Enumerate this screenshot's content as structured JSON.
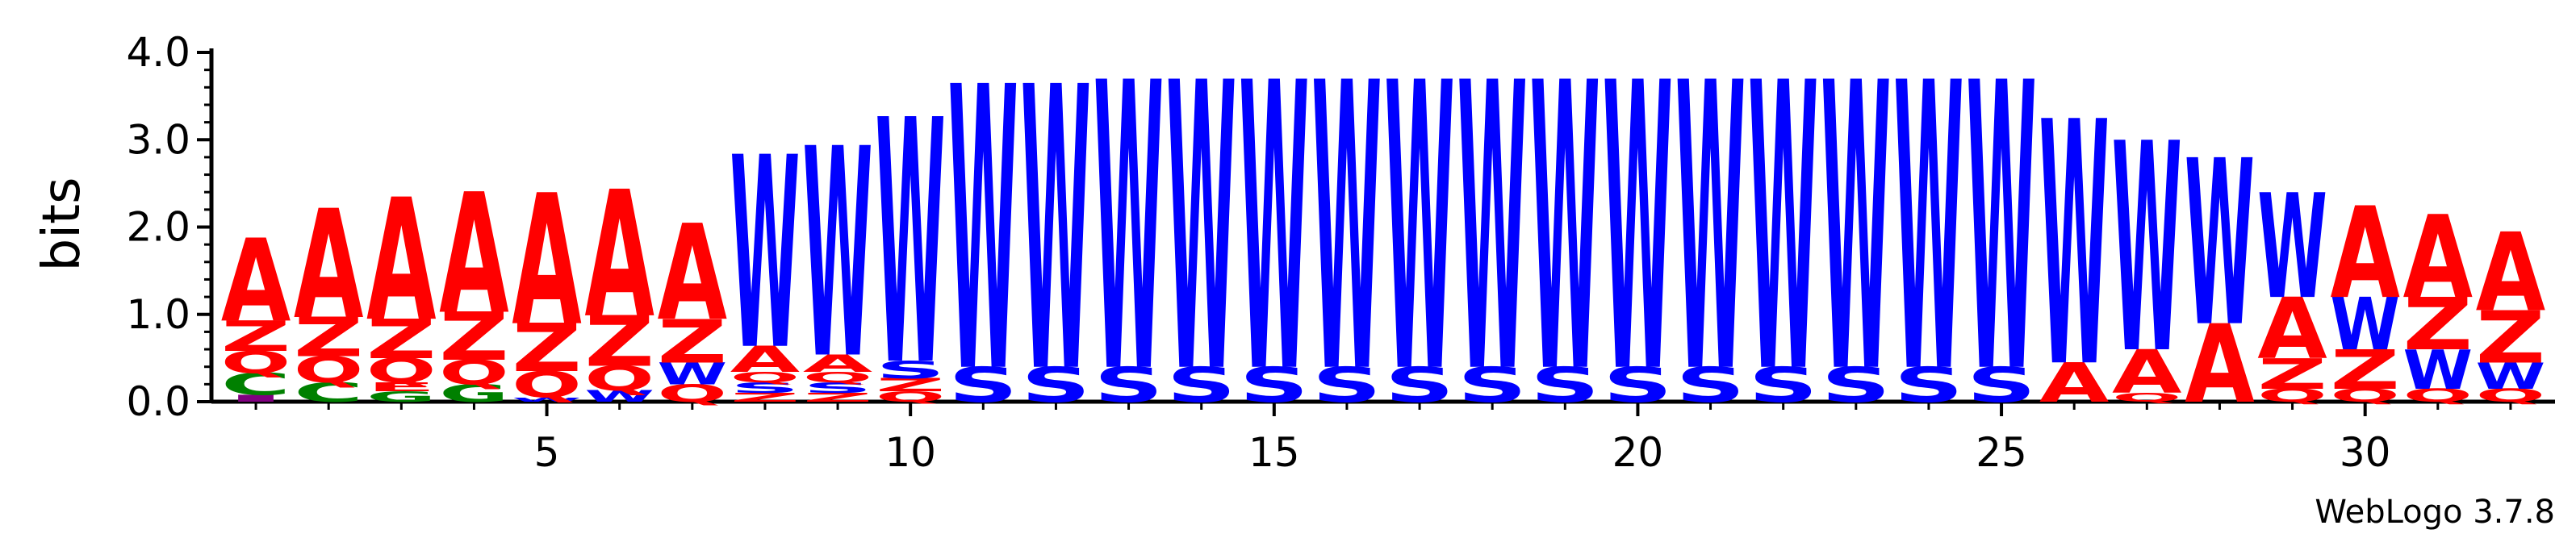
{
  "chart_data": {
    "type": "sequence_logo",
    "ylabel": "bits",
    "ylim": [
      0,
      4.0
    ],
    "y_ticks": [
      "0.0",
      "1.0",
      "2.0",
      "3.0",
      "4.0"
    ],
    "x_ticks": [
      "5",
      "10",
      "15",
      "20",
      "25",
      "30"
    ],
    "x_tick_positions": [
      5,
      10,
      15,
      20,
      25,
      30
    ],
    "positions": [
      {
        "pos": 1,
        "letters": [
          {
            "c": "I",
            "h": 0.08
          },
          {
            "c": "C",
            "h": 0.25
          },
          {
            "c": "Q",
            "h": 0.25
          },
          {
            "c": "Z",
            "h": 0.35
          },
          {
            "c": "A",
            "h": 0.95
          }
        ]
      },
      {
        "pos": 2,
        "letters": [
          {
            "c": "C",
            "h": 0.22
          },
          {
            "c": "Q",
            "h": 0.3
          },
          {
            "c": "Z",
            "h": 0.45
          },
          {
            "c": "A",
            "h": 1.25
          }
        ]
      },
      {
        "pos": 3,
        "letters": [
          {
            "c": "G",
            "h": 0.12
          },
          {
            "c": "E",
            "h": 0.1
          },
          {
            "c": "Q",
            "h": 0.28
          },
          {
            "c": "Z",
            "h": 0.45
          },
          {
            "c": "A",
            "h": 1.4
          }
        ]
      },
      {
        "pos": 4,
        "letters": [
          {
            "c": "G",
            "h": 0.2
          },
          {
            "c": "Q",
            "h": 0.28
          },
          {
            "c": "Z",
            "h": 0.55
          },
          {
            "c": "A",
            "h": 1.38
          }
        ]
      },
      {
        "pos": 5,
        "letters": [
          {
            "c": "W",
            "h": 0.05
          },
          {
            "c": "Q",
            "h": 0.3
          },
          {
            "c": "Z",
            "h": 0.55
          },
          {
            "c": "A",
            "h": 1.5
          }
        ]
      },
      {
        "pos": 6,
        "letters": [
          {
            "c": "W",
            "h": 0.13
          },
          {
            "c": "Q",
            "h": 0.28
          },
          {
            "c": "Z",
            "h": 0.58
          },
          {
            "c": "A",
            "h": 1.45
          }
        ]
      },
      {
        "pos": 7,
        "letters": [
          {
            "c": "Q",
            "h": 0.2
          },
          {
            "c": "W",
            "h": 0.25
          },
          {
            "c": "Z",
            "h": 0.5
          },
          {
            "c": "A",
            "h": 1.1
          }
        ]
      },
      {
        "pos": 8,
        "letters": [
          {
            "c": "Z",
            "h": 0.1
          },
          {
            "c": "S",
            "h": 0.12
          },
          {
            "c": "Q",
            "h": 0.12
          },
          {
            "c": "A",
            "h": 0.3
          },
          {
            "c": "W",
            "h": 2.2
          }
        ]
      },
      {
        "pos": 9,
        "letters": [
          {
            "c": "Z",
            "h": 0.1
          },
          {
            "c": "S",
            "h": 0.12
          },
          {
            "c": "Q",
            "h": 0.12
          },
          {
            "c": "A",
            "h": 0.2
          },
          {
            "c": "W",
            "h": 2.4
          }
        ]
      },
      {
        "pos": 10,
        "letters": [
          {
            "c": "Q",
            "h": 0.12
          },
          {
            "c": "Z",
            "h": 0.15
          },
          {
            "c": "S",
            "h": 0.2
          },
          {
            "c": "W",
            "h": 2.8
          }
        ]
      },
      {
        "pos": 11,
        "letters": [
          {
            "c": "S",
            "h": 0.4
          },
          {
            "c": "W",
            "h": 3.25
          }
        ]
      },
      {
        "pos": 12,
        "letters": [
          {
            "c": "S",
            "h": 0.4
          },
          {
            "c": "W",
            "h": 3.25
          }
        ]
      },
      {
        "pos": 13,
        "letters": [
          {
            "c": "S",
            "h": 0.4
          },
          {
            "c": "W",
            "h": 3.3
          }
        ]
      },
      {
        "pos": 14,
        "letters": [
          {
            "c": "S",
            "h": 0.4
          },
          {
            "c": "W",
            "h": 3.3
          }
        ]
      },
      {
        "pos": 15,
        "letters": [
          {
            "c": "S",
            "h": 0.4
          },
          {
            "c": "W",
            "h": 3.3
          }
        ]
      },
      {
        "pos": 16,
        "letters": [
          {
            "c": "S",
            "h": 0.4
          },
          {
            "c": "W",
            "h": 3.3
          }
        ]
      },
      {
        "pos": 17,
        "letters": [
          {
            "c": "S",
            "h": 0.4
          },
          {
            "c": "W",
            "h": 3.3
          }
        ]
      },
      {
        "pos": 18,
        "letters": [
          {
            "c": "S",
            "h": 0.4
          },
          {
            "c": "W",
            "h": 3.3
          }
        ]
      },
      {
        "pos": 19,
        "letters": [
          {
            "c": "S",
            "h": 0.4
          },
          {
            "c": "W",
            "h": 3.3
          }
        ]
      },
      {
        "pos": 20,
        "letters": [
          {
            "c": "S",
            "h": 0.4
          },
          {
            "c": "W",
            "h": 3.3
          }
        ]
      },
      {
        "pos": 21,
        "letters": [
          {
            "c": "S",
            "h": 0.4
          },
          {
            "c": "W",
            "h": 3.3
          }
        ]
      },
      {
        "pos": 22,
        "letters": [
          {
            "c": "S",
            "h": 0.4
          },
          {
            "c": "W",
            "h": 3.3
          }
        ]
      },
      {
        "pos": 23,
        "letters": [
          {
            "c": "S",
            "h": 0.4
          },
          {
            "c": "W",
            "h": 3.3
          }
        ]
      },
      {
        "pos": 24,
        "letters": [
          {
            "c": "S",
            "h": 0.4
          },
          {
            "c": "W",
            "h": 3.3
          }
        ]
      },
      {
        "pos": 25,
        "letters": [
          {
            "c": "S",
            "h": 0.4
          },
          {
            "c": "W",
            "h": 3.3
          }
        ]
      },
      {
        "pos": 26,
        "letters": [
          {
            "c": "A",
            "h": 0.45
          },
          {
            "c": "W",
            "h": 2.8
          }
        ]
      },
      {
        "pos": 27,
        "letters": [
          {
            "c": "Q",
            "h": 0.1
          },
          {
            "c": "A",
            "h": 0.5
          },
          {
            "c": "W",
            "h": 2.4
          }
        ]
      },
      {
        "pos": 28,
        "letters": [
          {
            "c": "A",
            "h": 0.9
          },
          {
            "c": "W",
            "h": 1.9
          }
        ]
      },
      {
        "pos": 29,
        "letters": [
          {
            "c": "Q",
            "h": 0.15
          },
          {
            "c": "Z",
            "h": 0.35
          },
          {
            "c": "A",
            "h": 0.7
          },
          {
            "c": "W",
            "h": 1.2
          }
        ]
      },
      {
        "pos": 30,
        "letters": [
          {
            "c": "Q",
            "h": 0.15
          },
          {
            "c": "Z",
            "h": 0.45
          },
          {
            "c": "W",
            "h": 0.6
          },
          {
            "c": "A",
            "h": 1.05
          }
        ]
      },
      {
        "pos": 31,
        "letters": [
          {
            "c": "Q",
            "h": 0.15
          },
          {
            "c": "W",
            "h": 0.45
          },
          {
            "c": "Z",
            "h": 0.6
          },
          {
            "c": "A",
            "h": 0.95
          }
        ]
      },
      {
        "pos": 32,
        "letters": [
          {
            "c": "Q",
            "h": 0.15
          },
          {
            "c": "W",
            "h": 0.3
          },
          {
            "c": "Z",
            "h": 0.6
          },
          {
            "c": "A",
            "h": 0.9
          }
        ]
      }
    ],
    "colors": {
      "A": "#ff0000",
      "Z": "#ff0000",
      "Q": "#ff0000",
      "E": "#ff0000",
      "W": "#0000ff",
      "S": "#0000ff",
      "C": "#008000",
      "G": "#008000",
      "I": "#800080"
    }
  },
  "footer": {
    "text": "WebLogo 3.7.8"
  }
}
